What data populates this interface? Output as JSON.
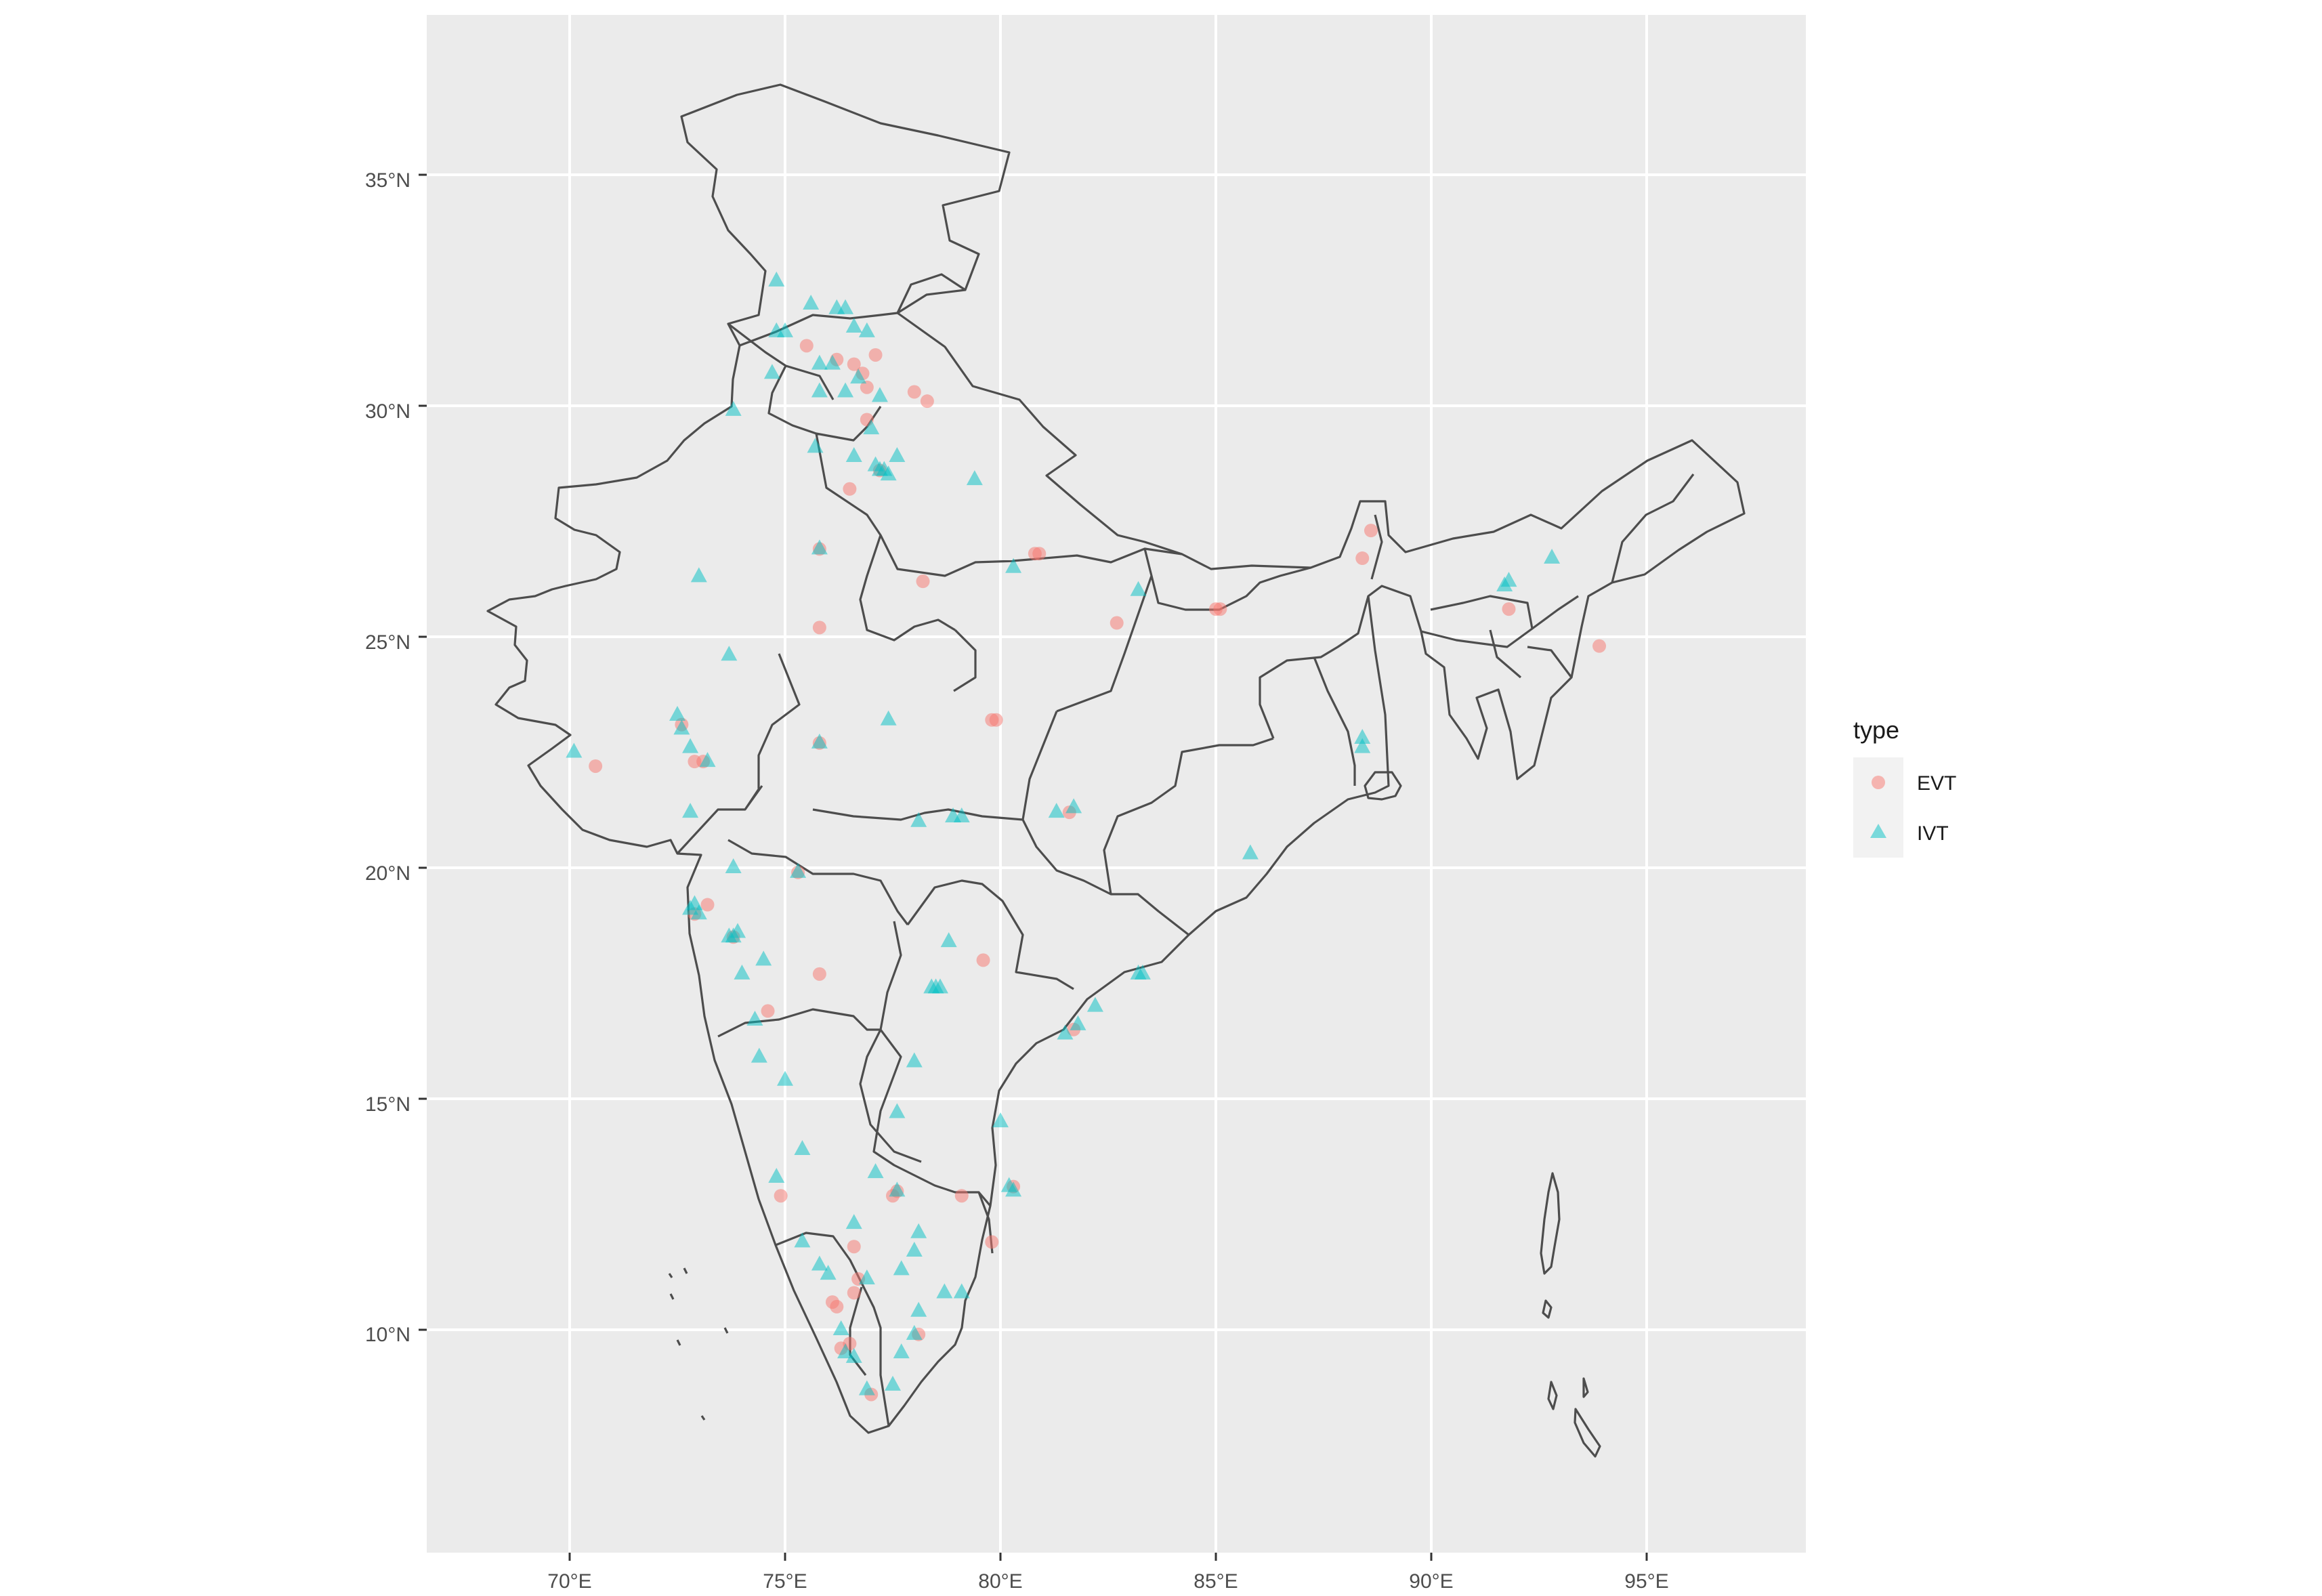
{
  "chart_data": {
    "type": "scatter",
    "title": "",
    "xlabel": "",
    "ylabel": "",
    "xlim": [
      66.5,
      98.5
    ],
    "ylim": [
      5.5,
      38.8
    ],
    "x_ticks": [
      70,
      75,
      80,
      85,
      90,
      95
    ],
    "y_ticks": [
      10,
      15,
      20,
      25,
      30,
      35
    ],
    "x_tick_labels": [
      "70°E",
      "75°E",
      "80°E",
      "85°E",
      "90°E",
      "95°E"
    ],
    "y_tick_labels": [
      "10°N",
      "15°N",
      "20°N",
      "25°N",
      "30°N",
      "35°N"
    ],
    "grid": true,
    "panel_background": "#ebebeb",
    "grid_color": "#ffffff",
    "border_color": "#4d4d4d",
    "legend": {
      "title": "type",
      "position": "right",
      "entries": [
        {
          "label": "EVT",
          "shape": "circle",
          "color": "#F8766D"
        },
        {
          "label": "IVT",
          "shape": "triangle",
          "color": "#00BFC4"
        }
      ]
    },
    "series": [
      {
        "name": "EVT",
        "shape": "circle",
        "color": "#F8766D",
        "points": [
          [
            75.5,
            31.3
          ],
          [
            76.2,
            31.0
          ],
          [
            76.6,
            30.9
          ],
          [
            77.1,
            31.1
          ],
          [
            76.8,
            30.7
          ],
          [
            76.9,
            30.4
          ],
          [
            78.0,
            30.3
          ],
          [
            78.3,
            30.1
          ],
          [
            76.9,
            29.7
          ],
          [
            76.5,
            28.2
          ],
          [
            77.2,
            28.6
          ],
          [
            75.8,
            26.9
          ],
          [
            78.2,
            26.2
          ],
          [
            80.9,
            26.8
          ],
          [
            80.8,
            26.8
          ],
          [
            75.8,
            25.2
          ],
          [
            82.7,
            25.3
          ],
          [
            85.0,
            25.6
          ],
          [
            85.1,
            25.6
          ],
          [
            88.4,
            26.7
          ],
          [
            88.6,
            27.3
          ],
          [
            91.8,
            25.6
          ],
          [
            93.9,
            24.8
          ],
          [
            79.9,
            23.2
          ],
          [
            79.8,
            23.2
          ],
          [
            75.8,
            22.7
          ],
          [
            72.6,
            23.1
          ],
          [
            72.9,
            22.3
          ],
          [
            70.6,
            22.2
          ],
          [
            73.1,
            22.3
          ],
          [
            73.2,
            19.2
          ],
          [
            72.9,
            19.0
          ],
          [
            75.3,
            19.9
          ],
          [
            75.8,
            17.7
          ],
          [
            79.6,
            18.0
          ],
          [
            81.6,
            21.2
          ],
          [
            73.8,
            18.5
          ],
          [
            74.6,
            16.9
          ],
          [
            81.7,
            16.5
          ],
          [
            77.6,
            13.0
          ],
          [
            77.5,
            12.9
          ],
          [
            79.1,
            12.9
          ],
          [
            79.8,
            11.9
          ],
          [
            76.6,
            11.8
          ],
          [
            76.1,
            10.6
          ],
          [
            76.2,
            10.5
          ],
          [
            76.6,
            10.8
          ],
          [
            76.7,
            11.1
          ],
          [
            76.5,
            9.7
          ],
          [
            76.3,
            9.6
          ],
          [
            78.1,
            9.9
          ],
          [
            77.0,
            8.6
          ],
          [
            74.9,
            12.9
          ],
          [
            80.3,
            13.1
          ]
        ]
      },
      {
        "name": "IVT",
        "shape": "triangle",
        "color": "#00BFC4",
        "points": [
          [
            74.8,
            32.7
          ],
          [
            75.6,
            32.2
          ],
          [
            76.2,
            32.1
          ],
          [
            76.4,
            32.1
          ],
          [
            76.6,
            31.7
          ],
          [
            74.8,
            31.6
          ],
          [
            75.0,
            31.6
          ],
          [
            76.9,
            31.6
          ],
          [
            75.8,
            30.9
          ],
          [
            76.1,
            30.9
          ],
          [
            74.7,
            30.7
          ],
          [
            75.8,
            30.3
          ],
          [
            76.4,
            30.3
          ],
          [
            76.7,
            30.6
          ],
          [
            77.2,
            30.2
          ],
          [
            73.8,
            29.9
          ],
          [
            75.7,
            29.1
          ],
          [
            77.0,
            29.5
          ],
          [
            77.2,
            28.6
          ],
          [
            77.3,
            28.6
          ],
          [
            77.1,
            28.7
          ],
          [
            77.6,
            28.9
          ],
          [
            76.6,
            28.9
          ],
          [
            77.4,
            28.5
          ],
          [
            79.4,
            28.4
          ],
          [
            73.0,
            26.3
          ],
          [
            75.8,
            26.9
          ],
          [
            80.3,
            26.5
          ],
          [
            83.2,
            26.0
          ],
          [
            91.7,
            26.1
          ],
          [
            91.8,
            26.2
          ],
          [
            92.8,
            26.7
          ],
          [
            73.7,
            24.6
          ],
          [
            72.5,
            23.3
          ],
          [
            72.6,
            23.0
          ],
          [
            72.8,
            22.6
          ],
          [
            70.1,
            22.5
          ],
          [
            73.2,
            22.3
          ],
          [
            77.4,
            23.2
          ],
          [
            75.8,
            22.7
          ],
          [
            88.4,
            22.6
          ],
          [
            88.4,
            22.8
          ],
          [
            72.8,
            21.2
          ],
          [
            79.1,
            21.1
          ],
          [
            78.9,
            21.1
          ],
          [
            81.3,
            21.2
          ],
          [
            81.7,
            21.3
          ],
          [
            78.1,
            21.0
          ],
          [
            73.8,
            20.0
          ],
          [
            72.8,
            19.1
          ],
          [
            72.9,
            19.2
          ],
          [
            73.0,
            19.0
          ],
          [
            73.8,
            18.5
          ],
          [
            73.9,
            18.6
          ],
          [
            73.7,
            18.5
          ],
          [
            75.3,
            19.9
          ],
          [
            85.8,
            20.3
          ],
          [
            74.5,
            18.0
          ],
          [
            74.0,
            17.7
          ],
          [
            78.5,
            17.4
          ],
          [
            78.4,
            17.4
          ],
          [
            78.6,
            17.4
          ],
          [
            78.8,
            18.4
          ],
          [
            83.3,
            17.7
          ],
          [
            83.2,
            17.7
          ],
          [
            74.3,
            16.7
          ],
          [
            74.4,
            15.9
          ],
          [
            75.0,
            15.4
          ],
          [
            78.0,
            15.8
          ],
          [
            81.8,
            16.6
          ],
          [
            81.5,
            16.4
          ],
          [
            82.2,
            17.0
          ],
          [
            80.0,
            14.5
          ],
          [
            77.6,
            14.7
          ],
          [
            75.4,
            13.9
          ],
          [
            74.8,
            13.3
          ],
          [
            77.1,
            13.4
          ],
          [
            77.6,
            13.0
          ],
          [
            80.2,
            13.1
          ],
          [
            80.3,
            13.0
          ],
          [
            76.6,
            12.3
          ],
          [
            78.1,
            12.1
          ],
          [
            78.0,
            11.7
          ],
          [
            77.7,
            11.3
          ],
          [
            75.4,
            11.9
          ],
          [
            75.8,
            11.4
          ],
          [
            76.9,
            11.1
          ],
          [
            76.0,
            11.2
          ],
          [
            78.7,
            10.8
          ],
          [
            79.1,
            10.8
          ],
          [
            78.0,
            9.9
          ],
          [
            76.3,
            10.0
          ],
          [
            76.4,
            9.5
          ],
          [
            76.6,
            9.4
          ],
          [
            76.9,
            8.7
          ],
          [
            77.5,
            8.8
          ],
          [
            77.7,
            9.5
          ],
          [
            78.1,
            10.4
          ]
        ]
      }
    ]
  }
}
